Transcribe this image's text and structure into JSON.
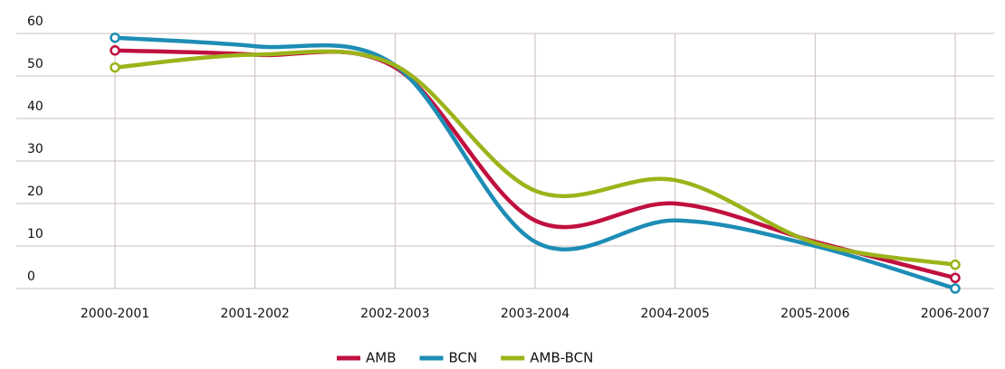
{
  "chart_data": {
    "type": "line",
    "categories": [
      "2000-2001",
      "2001-2002",
      "2002-2003",
      "2003-2004",
      "2004-2005",
      "2005-2006",
      "2006-2007"
    ],
    "series": [
      {
        "name": "AMB",
        "color": "#c0103f",
        "values": [
          56,
          55,
          52,
          16,
          20,
          11,
          2.5
        ]
      },
      {
        "name": "BCN",
        "color": "#1d8db5",
        "values": [
          59,
          57,
          52.5,
          11,
          16,
          10,
          0
        ]
      },
      {
        "name": "AMB-BCN",
        "color": "#9cb31a",
        "values": [
          52,
          55,
          52.5,
          23,
          25.5,
          10.7,
          5.6
        ]
      }
    ],
    "ylim": [
      0,
      60
    ],
    "yticks": [
      0,
      10,
      20,
      30,
      40,
      50,
      60
    ],
    "grid": true,
    "legend": "bottom"
  }
}
